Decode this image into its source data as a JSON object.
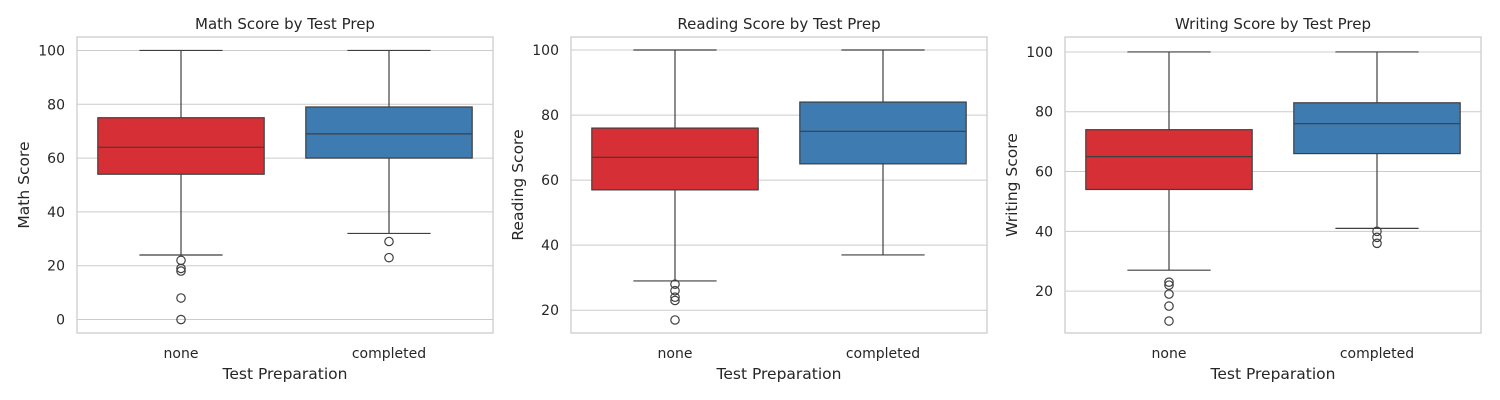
{
  "chart_data": [
    {
      "type": "box",
      "title": "Math Score by Test Prep",
      "xlabel": "Test Preparation",
      "ylabel": "Math Score",
      "ylim": [
        -5,
        105
      ],
      "yticks": [
        0,
        20,
        40,
        60,
        80,
        100
      ],
      "grid": "horizontal",
      "categories": [
        "none",
        "completed"
      ],
      "boxes": [
        {
          "category": "none",
          "color": "#d62f35",
          "whisker_low": 24,
          "q1": 54,
          "median": 64,
          "q3": 75,
          "whisker_high": 100,
          "outliers": [
            22,
            19,
            18,
            8,
            0
          ]
        },
        {
          "category": "completed",
          "color": "#3d7bb0",
          "whisker_low": 32,
          "q1": 60,
          "median": 69,
          "q3": 79,
          "whisker_high": 100,
          "outliers": [
            29,
            23
          ]
        }
      ]
    },
    {
      "type": "box",
      "title": "Reading Score by Test Prep",
      "xlabel": "Test Preparation",
      "ylabel": "Reading Score",
      "ylim": [
        13,
        104
      ],
      "yticks": [
        20,
        40,
        60,
        80,
        100
      ],
      "grid": "horizontal",
      "categories": [
        "none",
        "completed"
      ],
      "boxes": [
        {
          "category": "none",
          "color": "#d62f35",
          "whisker_low": 29,
          "q1": 57,
          "median": 67,
          "q3": 76,
          "whisker_high": 100,
          "outliers": [
            28,
            26,
            24,
            23,
            17
          ]
        },
        {
          "category": "completed",
          "color": "#3d7bb0",
          "whisker_low": 37,
          "q1": 65,
          "median": 75,
          "q3": 84,
          "whisker_high": 100,
          "outliers": []
        }
      ]
    },
    {
      "type": "box",
      "title": "Writing Score by Test Prep",
      "xlabel": "Test Preparation",
      "ylabel": "Writing Score",
      "ylim": [
        6,
        105
      ],
      "yticks": [
        20,
        40,
        60,
        80,
        100
      ],
      "grid": "horizontal",
      "categories": [
        "none",
        "completed"
      ],
      "boxes": [
        {
          "category": "none",
          "color": "#d62f35",
          "whisker_low": 27,
          "q1": 54,
          "median": 65,
          "q3": 74,
          "whisker_high": 100,
          "outliers": [
            23,
            22,
            19,
            15,
            10
          ]
        },
        {
          "category": "completed",
          "color": "#3d7bb0",
          "whisker_low": 41,
          "q1": 66,
          "median": 76,
          "q3": 83,
          "whisker_high": 100,
          "outliers": [
            40,
            38,
            36
          ]
        }
      ]
    }
  ]
}
